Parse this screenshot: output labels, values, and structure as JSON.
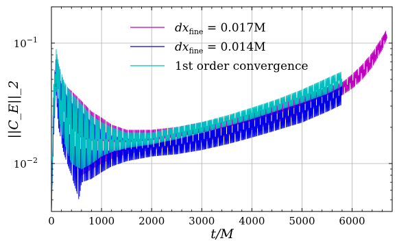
{
  "chart_data": {
    "type": "line",
    "title": "",
    "xlabel": "t/M",
    "ylabel": "||C_E||_2",
    "xlim": [
      0,
      6800
    ],
    "ylim": [
      0.004,
      0.2
    ],
    "yscale": "log",
    "grid": true,
    "legend_position": "top-center",
    "x_ticks": [
      0,
      1000,
      2000,
      3000,
      4000,
      5000,
      6000
    ],
    "x_tick_labels": [
      "0",
      "1000",
      "2000",
      "3000",
      "4000",
      "5000",
      "6000"
    ],
    "y_ticks": [
      0.01,
      0.1
    ],
    "y_tick_labels_base": [
      "10",
      "10"
    ],
    "y_tick_labels_exp": [
      "−2",
      "−1"
    ],
    "series": [
      {
        "name": "dx_fine = 0.017M",
        "legend_math": "dx",
        "legend_sub": "fine",
        "legend_rest": " = 0.017M",
        "color": "#bf00bf",
        "x_range": [
          0,
          6700
        ],
        "upper": [
          [
            0,
            0.004
          ],
          [
            40,
            0.04
          ],
          [
            90,
            0.085
          ],
          [
            140,
            0.065
          ],
          [
            250,
            0.045
          ],
          [
            400,
            0.04
          ],
          [
            600,
            0.033
          ],
          [
            800,
            0.027
          ],
          [
            1000,
            0.024
          ],
          [
            1200,
            0.021
          ],
          [
            1500,
            0.019
          ],
          [
            2000,
            0.019
          ],
          [
            2500,
            0.02
          ],
          [
            3000,
            0.022
          ],
          [
            3500,
            0.024
          ],
          [
            4000,
            0.027
          ],
          [
            4500,
            0.031
          ],
          [
            5000,
            0.036
          ],
          [
            5500,
            0.043
          ],
          [
            5800,
            0.047
          ],
          [
            6000,
            0.055
          ],
          [
            6200,
            0.066
          ],
          [
            6400,
            0.083
          ],
          [
            6600,
            0.112
          ],
          [
            6700,
            0.132
          ]
        ],
        "lower": [
          [
            0,
            0.004
          ],
          [
            40,
            0.02
          ],
          [
            90,
            0.045
          ],
          [
            140,
            0.025
          ],
          [
            250,
            0.018
          ],
          [
            400,
            0.012
          ],
          [
            600,
            0.008
          ],
          [
            800,
            0.009
          ],
          [
            1000,
            0.01
          ],
          [
            1200,
            0.011
          ],
          [
            1500,
            0.012
          ],
          [
            2000,
            0.013
          ],
          [
            2500,
            0.014
          ],
          [
            3000,
            0.015
          ],
          [
            3500,
            0.017
          ],
          [
            4000,
            0.019
          ],
          [
            4500,
            0.022
          ],
          [
            5000,
            0.026
          ],
          [
            5500,
            0.032
          ],
          [
            5800,
            0.037
          ],
          [
            6000,
            0.042
          ],
          [
            6200,
            0.05
          ],
          [
            6400,
            0.063
          ],
          [
            6600,
            0.088
          ],
          [
            6700,
            0.11
          ]
        ]
      },
      {
        "name": "dx_fine = 0.014M",
        "legend_math": "dx",
        "legend_sub": "fine",
        "legend_rest": " = 0.014M",
        "color": "#0000e6",
        "x_range": [
          0,
          5800
        ],
        "upper": [
          [
            0,
            0.004
          ],
          [
            40,
            0.035
          ],
          [
            90,
            0.075
          ],
          [
            140,
            0.055
          ],
          [
            250,
            0.04
          ],
          [
            400,
            0.032
          ],
          [
            600,
            0.027
          ],
          [
            800,
            0.022
          ],
          [
            1000,
            0.019
          ],
          [
            1200,
            0.017
          ],
          [
            1500,
            0.016
          ],
          [
            2000,
            0.016
          ],
          [
            2500,
            0.017
          ],
          [
            3000,
            0.019
          ],
          [
            3500,
            0.021
          ],
          [
            4000,
            0.024
          ],
          [
            4500,
            0.028
          ],
          [
            5000,
            0.033
          ],
          [
            5500,
            0.04
          ],
          [
            5800,
            0.045
          ]
        ],
        "lower": [
          [
            0,
            0.004
          ],
          [
            40,
            0.015
          ],
          [
            90,
            0.04
          ],
          [
            140,
            0.02
          ],
          [
            250,
            0.012
          ],
          [
            400,
            0.008
          ],
          [
            550,
            0.005
          ],
          [
            600,
            0.007
          ],
          [
            800,
            0.0075
          ],
          [
            1000,
            0.0085
          ],
          [
            1200,
            0.0095
          ],
          [
            1500,
            0.0105
          ],
          [
            2000,
            0.0115
          ],
          [
            2500,
            0.012
          ],
          [
            3000,
            0.013
          ],
          [
            3500,
            0.0145
          ],
          [
            4000,
            0.0165
          ],
          [
            4500,
            0.019
          ],
          [
            5000,
            0.022
          ],
          [
            5500,
            0.027
          ],
          [
            5800,
            0.031
          ]
        ]
      },
      {
        "name": "1st order convergence",
        "legend_math": "",
        "legend_sub": "",
        "legend_rest": "1st order convergence",
        "color": "#00bfbf",
        "x_range": [
          0,
          5800
        ],
        "upper": [
          [
            0,
            0.004
          ],
          [
            40,
            0.04
          ],
          [
            90,
            0.092
          ],
          [
            140,
            0.068
          ],
          [
            250,
            0.048
          ],
          [
            400,
            0.038
          ],
          [
            600,
            0.031
          ],
          [
            800,
            0.025
          ],
          [
            1000,
            0.022
          ],
          [
            1200,
            0.02
          ],
          [
            1500,
            0.018
          ],
          [
            2000,
            0.018
          ],
          [
            2500,
            0.02
          ],
          [
            3000,
            0.022
          ],
          [
            3500,
            0.025
          ],
          [
            4000,
            0.029
          ],
          [
            4500,
            0.034
          ],
          [
            5000,
            0.041
          ],
          [
            5500,
            0.051
          ],
          [
            5800,
            0.058
          ]
        ],
        "lower": [
          [
            0,
            0.004
          ],
          [
            40,
            0.018
          ],
          [
            90,
            0.048
          ],
          [
            140,
            0.024
          ],
          [
            250,
            0.015
          ],
          [
            400,
            0.01
          ],
          [
            600,
            0.009
          ],
          [
            800,
            0.01
          ],
          [
            1000,
            0.0115
          ],
          [
            1200,
            0.0125
          ],
          [
            1500,
            0.0135
          ],
          [
            2000,
            0.0145
          ],
          [
            2500,
            0.016
          ],
          [
            3000,
            0.018
          ],
          [
            3500,
            0.0205
          ],
          [
            4000,
            0.0235
          ],
          [
            4500,
            0.0275
          ],
          [
            5000,
            0.032
          ],
          [
            5500,
            0.038
          ],
          [
            5800,
            0.044
          ]
        ]
      }
    ]
  }
}
